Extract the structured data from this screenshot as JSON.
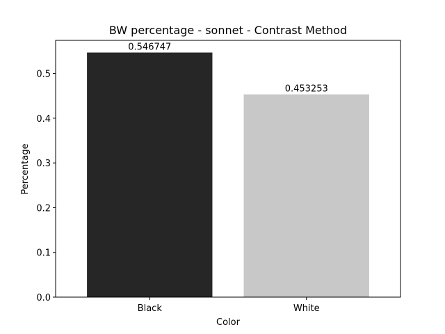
{
  "chart_data": {
    "type": "bar",
    "title": "BW percentage - sonnet - Contrast Method",
    "xlabel": "Color",
    "ylabel": "Percentage",
    "categories": [
      "Black",
      "White"
    ],
    "values": [
      0.546747,
      0.453253
    ],
    "data_labels": [
      "0.546747",
      "0.453253"
    ],
    "bar_colors": [
      "#262626",
      "#c8c8c8"
    ],
    "ylim": [
      0,
      0.574
    ],
    "yticks": [
      0.0,
      0.1,
      0.2,
      0.3,
      0.4,
      0.5
    ],
    "ytick_labels": [
      "0.0",
      "0.1",
      "0.2",
      "0.3",
      "0.4",
      "0.5"
    ],
    "grid": false,
    "legend": "none"
  }
}
